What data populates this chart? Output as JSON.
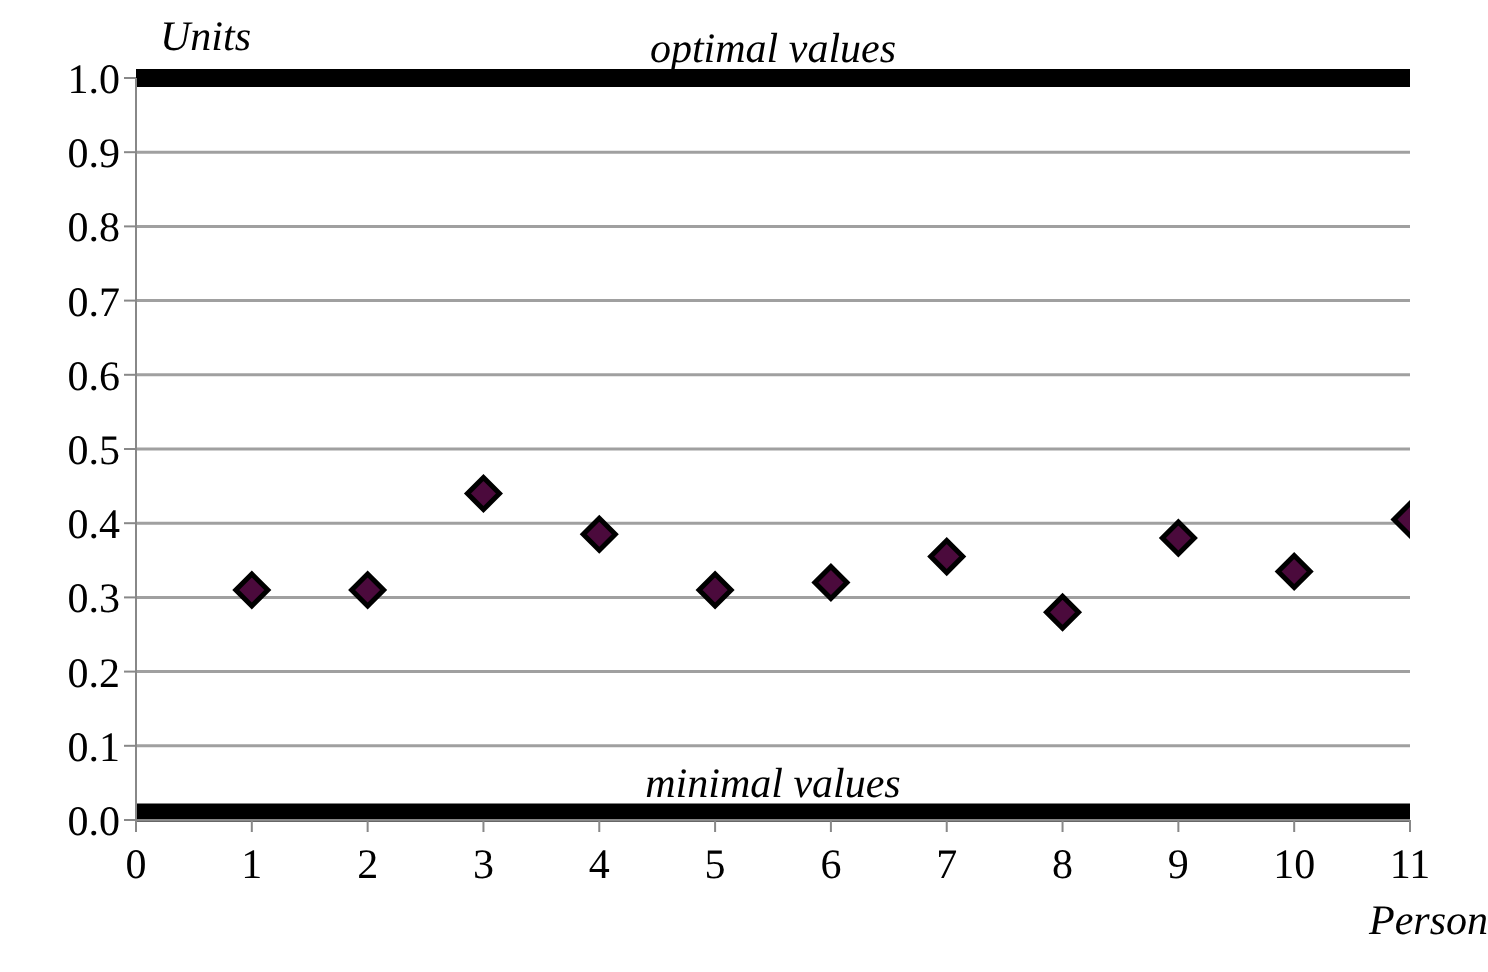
{
  "chart_data": {
    "type": "scatter",
    "xlabel": "Person",
    "ylabel": "Units",
    "x": [
      1,
      2,
      3,
      4,
      5,
      6,
      7,
      8,
      9,
      10,
      11
    ],
    "series": [
      {
        "color": "#4b0a3c",
        "values": [
          0.31,
          0.31,
          0.44,
          0.385,
          0.31,
          0.32,
          0.355,
          0.28,
          0.38,
          0.335,
          0.405
        ]
      }
    ],
    "xlim": [
      0,
      11
    ],
    "xticks": [
      0,
      1,
      2,
      3,
      4,
      5,
      6,
      7,
      8,
      9,
      10,
      11
    ],
    "ylim": [
      0,
      1
    ],
    "yticks": [
      {
        "value": 0,
        "label": "0.0"
      },
      {
        "value": 0.1,
        "label": "0.1"
      },
      {
        "value": 0.2,
        "label": "0.2"
      },
      {
        "value": 0.3,
        "label": "0.3"
      },
      {
        "value": 0.4,
        "label": "0.4"
      },
      {
        "value": 0.5,
        "label": "0.5"
      },
      {
        "value": 0.6,
        "label": "0.6"
      },
      {
        "value": 0.7,
        "label": "0.7"
      },
      {
        "value": 0.8,
        "label": "0.8"
      },
      {
        "value": 0.9,
        "label": "0.9"
      },
      {
        "value": 1,
        "label": "1.0"
      }
    ],
    "ref_lines": [
      {
        "axis": "y",
        "value": 1,
        "label": "optimal values",
        "color": "#000000"
      },
      {
        "axis": "y",
        "value": 0.01,
        "label": "minimal values",
        "color": "#000000"
      }
    ],
    "grid": "y",
    "marker": "diamond",
    "legend": false
  }
}
